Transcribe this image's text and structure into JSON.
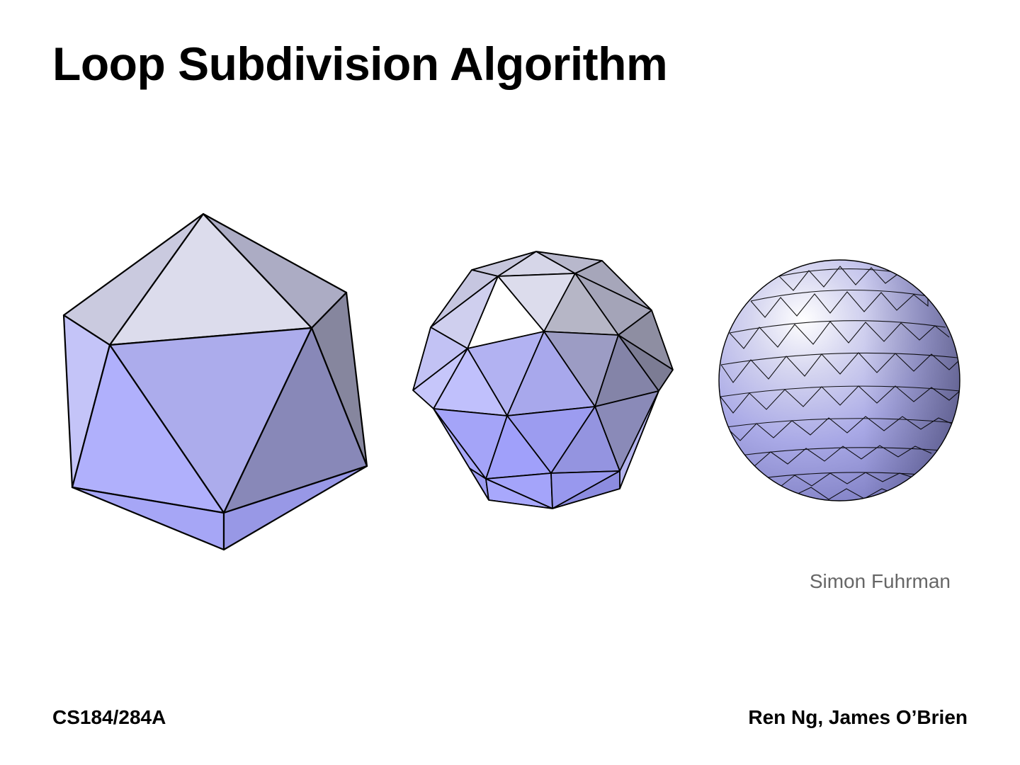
{
  "slide": {
    "title": "Loop Subdivision Algorithm",
    "image_credit": "Simon Fuhrman",
    "footer_left": "CS184/284A",
    "footer_right": "Ren Ng, James O’Brien"
  },
  "figure": {
    "meshes": [
      {
        "name": "icosahedron"
      },
      {
        "name": "subdivision-level-1"
      },
      {
        "name": "subdivision-level-2"
      }
    ]
  }
}
